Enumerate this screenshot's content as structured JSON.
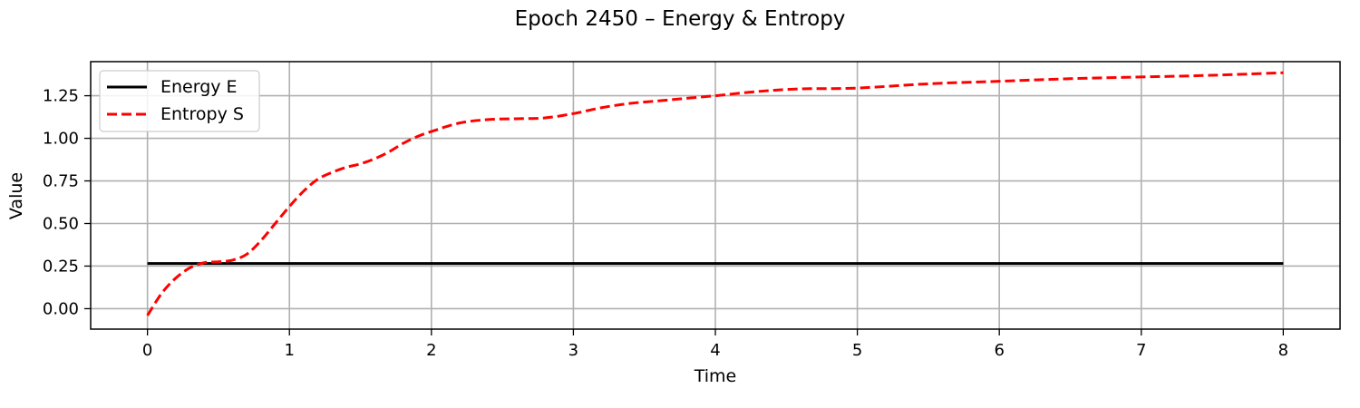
{
  "chart_data": {
    "type": "line",
    "title": "Epoch 2450 – Energy & Entropy",
    "xlabel": "Time",
    "ylabel": "Value",
    "xlim": [
      -0.4,
      8.4
    ],
    "ylim": [
      -0.12,
      1.45
    ],
    "xticks": [
      0,
      1,
      2,
      3,
      4,
      5,
      6,
      7,
      8
    ],
    "xtick_labels": [
      "0",
      "1",
      "2",
      "3",
      "4",
      "5",
      "6",
      "7",
      "8"
    ],
    "yticks": [
      0.0,
      0.25,
      0.5,
      0.75,
      1.0,
      1.25
    ],
    "ytick_labels": [
      "0.00",
      "0.25",
      "0.50",
      "0.75",
      "1.00",
      "1.25"
    ],
    "grid": true,
    "legend_position": "top-left",
    "series": [
      {
        "name": "Energy E",
        "color": "#000000",
        "style": "solid",
        "x": [
          0,
          8
        ],
        "y": [
          0.265,
          0.265
        ]
      },
      {
        "name": "Entropy S",
        "color": "#ff0000",
        "style": "dashed",
        "x": [
          0,
          0.1,
          0.2,
          0.3,
          0.4,
          0.5,
          0.6,
          0.7,
          0.8,
          0.9,
          1.0,
          1.1,
          1.2,
          1.3,
          1.4,
          1.5,
          1.6,
          1.7,
          1.8,
          1.9,
          2.0,
          2.2,
          2.4,
          2.6,
          2.8,
          3.0,
          3.2,
          3.4,
          3.6,
          3.8,
          4.0,
          4.3,
          4.6,
          5.0,
          5.5,
          6.0,
          6.5,
          7.0,
          7.5,
          8.0
        ],
        "y": [
          -0.04,
          0.09,
          0.18,
          0.24,
          0.27,
          0.275,
          0.285,
          0.32,
          0.4,
          0.5,
          0.6,
          0.69,
          0.76,
          0.8,
          0.83,
          0.85,
          0.88,
          0.92,
          0.97,
          1.01,
          1.04,
          1.09,
          1.11,
          1.115,
          1.12,
          1.145,
          1.18,
          1.205,
          1.22,
          1.235,
          1.25,
          1.275,
          1.29,
          1.295,
          1.32,
          1.335,
          1.35,
          1.36,
          1.37,
          1.385
        ]
      }
    ]
  }
}
